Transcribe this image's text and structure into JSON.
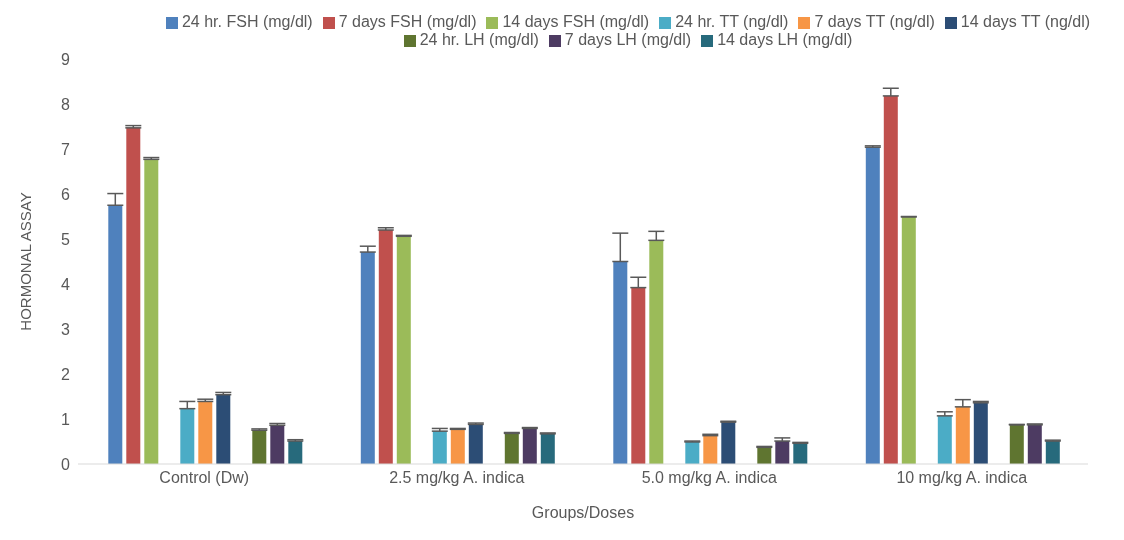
{
  "chart_data": {
    "type": "bar",
    "xlabel": "Groups/Doses",
    "ylabel": "HORMONAL ASSAY",
    "categories": [
      "Control (Dw)",
      "2.5 mg/kg A. indica",
      "5.0 mg/kg A. indica",
      "10 mg/kg A. indica"
    ],
    "ylim": [
      0,
      9
    ],
    "yticks": [
      0,
      1,
      2,
      3,
      4,
      5,
      6,
      7,
      8,
      9
    ],
    "grid": false,
    "legend": "top",
    "series": [
      {
        "name": "24 hr. FSH (mg/dl)",
        "color": "#4f81bd",
        "values": [
          5.75,
          4.71,
          4.5,
          7.04
        ],
        "errors": [
          [
            5.75,
            6.01
          ],
          [
            4.71,
            4.84
          ],
          [
            4.5,
            5.13
          ],
          [
            7.04,
            7.07
          ]
        ]
      },
      {
        "name": "7 days FSH (mg/dl)",
        "color": "#c0504d",
        "values": [
          7.47,
          5.2,
          3.92,
          8.18
        ],
        "errors": [
          [
            7.47,
            7.52
          ],
          [
            5.2,
            5.25
          ],
          [
            3.92,
            4.15
          ],
          [
            8.18,
            8.35
          ]
        ]
      },
      {
        "name": "14 days FSH (mg/dl)",
        "color": "#9bbb59",
        "values": [
          6.77,
          5.06,
          4.97,
          5.49
        ],
        "errors": [
          [
            6.77,
            6.81
          ],
          [
            5.06,
            5.08
          ],
          [
            4.97,
            5.17
          ],
          [
            5.49,
            5.5
          ]
        ]
      },
      {
        "name": "24 hr. TT (ng/dl)",
        "color": "#4bacc6",
        "values": [
          1.23,
          0.73,
          0.49,
          1.07
        ],
        "errors": [
          [
            1.23,
            1.39
          ],
          [
            0.73,
            0.79
          ],
          [
            0.49,
            0.51
          ],
          [
            1.07,
            1.16
          ]
        ]
      },
      {
        "name": "7 days TT (ng/dl)",
        "color": "#f79646",
        "values": [
          1.39,
          0.77,
          0.63,
          1.27
        ],
        "errors": [
          [
            1.39,
            1.44
          ],
          [
            0.77,
            0.79
          ],
          [
            0.63,
            0.66
          ],
          [
            1.27,
            1.43
          ]
        ]
      },
      {
        "name": "14 days TT (ng/dl)",
        "color": "#2c4d75",
        "values": [
          1.54,
          0.88,
          0.93,
          1.36
        ],
        "errors": [
          [
            1.54,
            1.59
          ],
          [
            0.88,
            0.91
          ],
          [
            0.93,
            0.95
          ],
          [
            1.36,
            1.39
          ]
        ]
      },
      {
        "name": "24 hr. LH (mg/dl)",
        "color": "#5f7530",
        "values": [
          0.75,
          0.68,
          0.37,
          0.87
        ],
        "errors": [
          [
            0.75,
            0.78
          ],
          [
            0.68,
            0.7
          ],
          [
            0.37,
            0.39
          ],
          [
            0.87,
            0.88
          ]
        ]
      },
      {
        "name": "7 days LH (mg/dl)",
        "color": "#4d3b62",
        "values": [
          0.86,
          0.79,
          0.51,
          0.87
        ],
        "errors": [
          [
            0.86,
            0.9
          ],
          [
            0.79,
            0.81
          ],
          [
            0.51,
            0.58
          ],
          [
            0.87,
            0.89
          ]
        ]
      },
      {
        "name": "14 days LH (mg/dl)",
        "color": "#276a7c",
        "values": [
          0.51,
          0.67,
          0.46,
          0.51
        ],
        "errors": [
          [
            0.51,
            0.54
          ],
          [
            0.67,
            0.69
          ],
          [
            0.46,
            0.48
          ],
          [
            0.51,
            0.53
          ]
        ]
      }
    ]
  }
}
